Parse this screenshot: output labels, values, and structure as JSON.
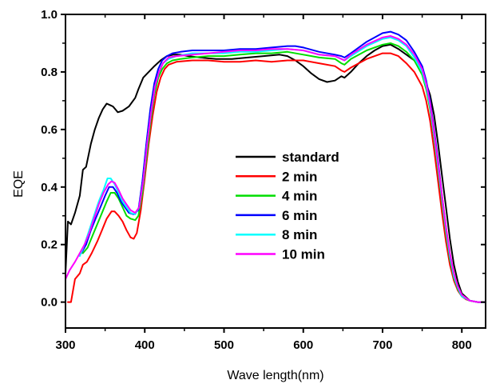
{
  "chart_data": {
    "type": "line",
    "xlabel": "Wave length(nm)",
    "ylabel": "EQE",
    "xlim": [
      300,
      830
    ],
    "ylim": [
      -0.09,
      1.0
    ],
    "xticks": [
      300,
      400,
      500,
      600,
      700,
      800
    ],
    "xtick_labels": [
      "300",
      "400",
      "500",
      "600",
      "700",
      "800"
    ],
    "yticks": [
      0.0,
      0.2,
      0.4,
      0.6,
      0.8,
      1.0
    ],
    "ytick_labels": [
      "0.0",
      "0.2",
      "0.4",
      "0.6",
      "0.8",
      "1.0"
    ],
    "grid": false,
    "legend_position": "center",
    "series": [
      {
        "name": "standard",
        "color": "#000000",
        "x": [
          300,
          303,
          307,
          312,
          318,
          322,
          326,
          332,
          337,
          342,
          347,
          352,
          356,
          360,
          366,
          372,
          380,
          388,
          392,
          398,
          405,
          412,
          420,
          428,
          436,
          445,
          455,
          470,
          490,
          510,
          530,
          550,
          570,
          580,
          590,
          600,
          610,
          620,
          630,
          640,
          648,
          652,
          660,
          670,
          680,
          690,
          700,
          710,
          720,
          730,
          740,
          750,
          760,
          765,
          770,
          775,
          780,
          785,
          790,
          795,
          800,
          810,
          820,
          830
        ],
        "y": [
          0.1,
          0.28,
          0.27,
          0.31,
          0.37,
          0.46,
          0.47,
          0.55,
          0.6,
          0.64,
          0.67,
          0.69,
          0.685,
          0.68,
          0.66,
          0.665,
          0.68,
          0.71,
          0.74,
          0.78,
          0.8,
          0.82,
          0.84,
          0.855,
          0.86,
          0.86,
          0.855,
          0.85,
          0.845,
          0.845,
          0.85,
          0.855,
          0.86,
          0.855,
          0.84,
          0.82,
          0.795,
          0.775,
          0.765,
          0.77,
          0.785,
          0.78,
          0.8,
          0.83,
          0.855,
          0.875,
          0.89,
          0.895,
          0.88,
          0.86,
          0.84,
          0.8,
          0.72,
          0.65,
          0.55,
          0.44,
          0.33,
          0.22,
          0.13,
          0.07,
          0.03,
          0.005,
          0.0,
          0.0
        ]
      },
      {
        "name": "2 min",
        "color": "#ff0000",
        "x": [
          303,
          307,
          312,
          318,
          322,
          327,
          333,
          340,
          346,
          352,
          358,
          362,
          367,
          372,
          377,
          382,
          386,
          390,
          395,
          400,
          405,
          410,
          415,
          420,
          425,
          430,
          440,
          460,
          480,
          500,
          520,
          540,
          560,
          580,
          600,
          620,
          640,
          648,
          652,
          660,
          680,
          700,
          710,
          720,
          730,
          740,
          750,
          755,
          760,
          765,
          770,
          775,
          780,
          785,
          790,
          795,
          800,
          805,
          810,
          820,
          830
        ],
        "y": [
          0.0,
          0.0,
          0.08,
          0.1,
          0.13,
          0.14,
          0.17,
          0.21,
          0.25,
          0.29,
          0.315,
          0.315,
          0.3,
          0.28,
          0.25,
          0.225,
          0.22,
          0.24,
          0.32,
          0.43,
          0.55,
          0.65,
          0.73,
          0.78,
          0.81,
          0.825,
          0.835,
          0.84,
          0.84,
          0.835,
          0.835,
          0.84,
          0.835,
          0.84,
          0.84,
          0.83,
          0.82,
          0.805,
          0.8,
          0.815,
          0.845,
          0.865,
          0.865,
          0.855,
          0.83,
          0.8,
          0.75,
          0.7,
          0.63,
          0.53,
          0.42,
          0.31,
          0.21,
          0.13,
          0.075,
          0.04,
          0.02,
          0.01,
          0.005,
          0.0,
          0.0
        ]
      },
      {
        "name": "4 min",
        "color": "#00dd00",
        "x": [
          322,
          328,
          334,
          340,
          346,
          352,
          357,
          362,
          367,
          372,
          377,
          382,
          388,
          392,
          397,
          402,
          407,
          412,
          417,
          422,
          428,
          435,
          445,
          460,
          480,
          500,
          520,
          540,
          560,
          580,
          600,
          620,
          640,
          648,
          652,
          660,
          680,
          700,
          710,
          720,
          730,
          740,
          750,
          755,
          760,
          765,
          770,
          775,
          780,
          785,
          790,
          795,
          800,
          810,
          820,
          830
        ],
        "y": [
          0.17,
          0.19,
          0.23,
          0.27,
          0.31,
          0.35,
          0.38,
          0.38,
          0.36,
          0.33,
          0.3,
          0.29,
          0.285,
          0.3,
          0.38,
          0.5,
          0.62,
          0.72,
          0.78,
          0.81,
          0.83,
          0.84,
          0.845,
          0.85,
          0.855,
          0.855,
          0.86,
          0.865,
          0.865,
          0.87,
          0.86,
          0.85,
          0.845,
          0.83,
          0.825,
          0.845,
          0.875,
          0.895,
          0.9,
          0.89,
          0.87,
          0.84,
          0.79,
          0.74,
          0.67,
          0.57,
          0.46,
          0.35,
          0.24,
          0.15,
          0.085,
          0.045,
          0.02,
          0.005,
          0.0,
          0.0
        ]
      },
      {
        "name": "6 min",
        "color": "#0000ff",
        "x": [
          320,
          326,
          332,
          338,
          344,
          350,
          355,
          360,
          365,
          370,
          375,
          380,
          386,
          392,
          397,
          402,
          407,
          412,
          417,
          422,
          428,
          435,
          445,
          460,
          480,
          500,
          520,
          540,
          560,
          580,
          590,
          600,
          620,
          640,
          648,
          652,
          660,
          680,
          700,
          710,
          720,
          730,
          740,
          750,
          755,
          760,
          765,
          770,
          775,
          780,
          785,
          790,
          795,
          800,
          810,
          820,
          830
        ],
        "y": [
          0.17,
          0.2,
          0.25,
          0.29,
          0.33,
          0.37,
          0.4,
          0.4,
          0.38,
          0.35,
          0.33,
          0.31,
          0.305,
          0.32,
          0.42,
          0.55,
          0.67,
          0.76,
          0.81,
          0.84,
          0.855,
          0.865,
          0.87,
          0.875,
          0.875,
          0.875,
          0.88,
          0.88,
          0.885,
          0.89,
          0.89,
          0.885,
          0.87,
          0.86,
          0.855,
          0.85,
          0.865,
          0.905,
          0.935,
          0.94,
          0.93,
          0.91,
          0.87,
          0.82,
          0.77,
          0.7,
          0.6,
          0.49,
          0.37,
          0.26,
          0.16,
          0.09,
          0.05,
          0.02,
          0.005,
          0.0,
          0.0
        ]
      },
      {
        "name": "8 min",
        "color": "#00ffff",
        "x": [
          318,
          324,
          330,
          336,
          342,
          348,
          353,
          357,
          362,
          367,
          372,
          377,
          382,
          388,
          393,
          398,
          403,
          408,
          413,
          418,
          423,
          430,
          440,
          460,
          480,
          500,
          520,
          540,
          560,
          580,
          600,
          620,
          640,
          648,
          652,
          660,
          680,
          700,
          710,
          720,
          730,
          740,
          750,
          755,
          760,
          765,
          770,
          775,
          780,
          785,
          790,
          795,
          800,
          810,
          820,
          830
        ],
        "y": [
          0.16,
          0.2,
          0.25,
          0.3,
          0.35,
          0.39,
          0.43,
          0.43,
          0.41,
          0.38,
          0.35,
          0.33,
          0.31,
          0.305,
          0.33,
          0.42,
          0.55,
          0.66,
          0.75,
          0.8,
          0.83,
          0.845,
          0.855,
          0.865,
          0.865,
          0.865,
          0.87,
          0.87,
          0.875,
          0.88,
          0.875,
          0.86,
          0.855,
          0.845,
          0.84,
          0.855,
          0.89,
          0.915,
          0.92,
          0.91,
          0.89,
          0.85,
          0.8,
          0.75,
          0.68,
          0.58,
          0.47,
          0.36,
          0.25,
          0.16,
          0.09,
          0.05,
          0.02,
          0.005,
          0.0,
          0.0
        ]
      },
      {
        "name": "10 min",
        "color": "#ff00ff",
        "x": [
          300,
          305,
          312,
          318,
          324,
          330,
          336,
          342,
          348,
          354,
          358,
          362,
          367,
          372,
          377,
          382,
          388,
          393,
          398,
          403,
          408,
          413,
          418,
          423,
          430,
          440,
          460,
          480,
          500,
          520,
          540,
          560,
          580,
          600,
          620,
          640,
          648,
          652,
          660,
          680,
          700,
          710,
          720,
          730,
          740,
          750,
          755,
          760,
          765,
          770,
          775,
          780,
          785,
          790,
          795,
          800,
          810,
          820,
          830
        ],
        "y": [
          0.08,
          0.11,
          0.14,
          0.17,
          0.2,
          0.24,
          0.29,
          0.34,
          0.38,
          0.41,
          0.42,
          0.415,
          0.39,
          0.36,
          0.34,
          0.32,
          0.31,
          0.33,
          0.42,
          0.55,
          0.66,
          0.75,
          0.8,
          0.83,
          0.85,
          0.855,
          0.86,
          0.865,
          0.87,
          0.875,
          0.875,
          0.88,
          0.88,
          0.875,
          0.86,
          0.855,
          0.845,
          0.84,
          0.86,
          0.895,
          0.92,
          0.925,
          0.915,
          0.895,
          0.86,
          0.81,
          0.76,
          0.69,
          0.59,
          0.48,
          0.37,
          0.26,
          0.17,
          0.1,
          0.055,
          0.025,
          0.005,
          0.0,
          0.0
        ]
      }
    ]
  }
}
